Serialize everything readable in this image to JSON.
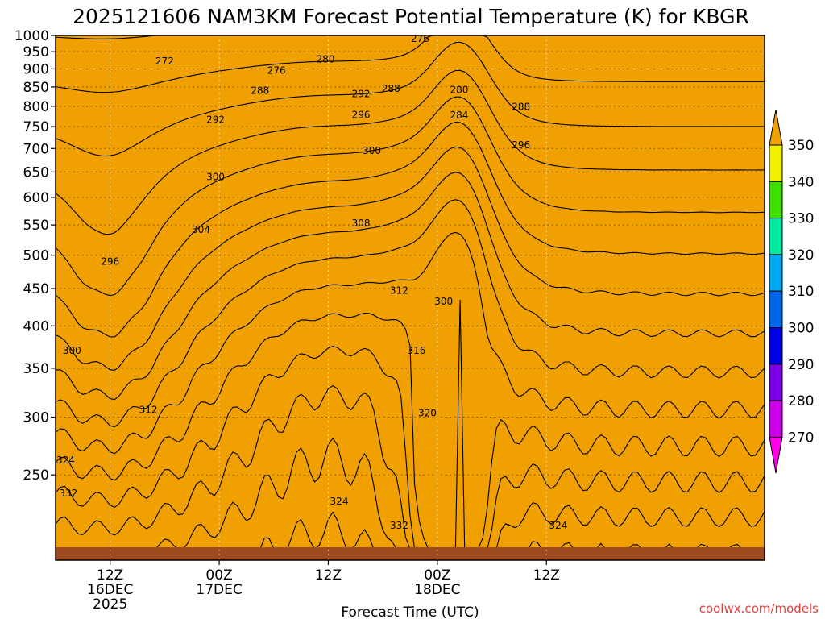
{
  "chart_data": {
    "type": "heatmap",
    "title": "2025121606 NAM3KM Forecast Potential Temperature (K) for KBGR",
    "xlabel": "Forecast Time (UTC)",
    "ylabel": "",
    "credit": "coolwx.com/models",
    "x_hours": [
      0,
      78
    ],
    "x_ticks": [
      {
        "hour": 6,
        "lines": [
          "12Z",
          "16DEC",
          "2025"
        ]
      },
      {
        "hour": 18,
        "lines": [
          "00Z",
          "17DEC"
        ]
      },
      {
        "hour": 30,
        "lines": [
          "12Z"
        ]
      },
      {
        "hour": 42,
        "lines": [
          "00Z",
          "18DEC"
        ]
      },
      {
        "hour": 54,
        "lines": [
          "12Z"
        ]
      }
    ],
    "y_levels": [
      1000,
      950,
      900,
      850,
      800,
      750,
      700,
      650,
      600,
      550,
      500,
      450,
      400,
      350,
      300,
      250
    ],
    "ylim": [
      1000,
      200
    ],
    "y_scale": "log",
    "legend_levels": [
      270,
      280,
      290,
      300,
      310,
      320,
      330,
      340,
      350
    ],
    "legend_placement": "right",
    "band_colors": [
      "#ff00e6",
      "#cc00e6",
      "#7a00e6",
      "#0000e6",
      "#0066e6",
      "#00a8f0",
      "#00eaa0",
      "#40e000",
      "#f0f000",
      "#f0a000"
    ],
    "ground_color": "#a04a20",
    "grid": true,
    "contour_labels": [
      {
        "text": "332",
        "hour": 1.4,
        "hpa": 236
      },
      {
        "text": "324",
        "hour": 1.1,
        "hpa": 262
      },
      {
        "text": "312",
        "hour": 10.2,
        "hpa": 307
      },
      {
        "text": "300",
        "hour": 1.8,
        "hpa": 370
      },
      {
        "text": "296",
        "hour": 6.0,
        "hpa": 490
      },
      {
        "text": "304",
        "hour": 16.0,
        "hpa": 542
      },
      {
        "text": "300",
        "hour": 17.6,
        "hpa": 640
      },
      {
        "text": "292",
        "hour": 17.6,
        "hpa": 767
      },
      {
        "text": "288",
        "hour": 22.5,
        "hpa": 840
      },
      {
        "text": "276",
        "hour": 24.3,
        "hpa": 895
      },
      {
        "text": "272",
        "hour": 12.0,
        "hpa": 922
      },
      {
        "text": "280",
        "hour": 29.7,
        "hpa": 928
      },
      {
        "text": "276",
        "hour": 40.1,
        "hpa": 990
      },
      {
        "text": "324",
        "hour": 31.2,
        "hpa": 230
      },
      {
        "text": "332",
        "hour": 37.8,
        "hpa": 213
      },
      {
        "text": "324",
        "hour": 55.3,
        "hpa": 213
      },
      {
        "text": "320",
        "hour": 40.9,
        "hpa": 304
      },
      {
        "text": "316",
        "hour": 39.7,
        "hpa": 370
      },
      {
        "text": "312",
        "hour": 37.8,
        "hpa": 447
      },
      {
        "text": "308",
        "hour": 33.6,
        "hpa": 553
      },
      {
        "text": "300",
        "hour": 42.7,
        "hpa": 432
      },
      {
        "text": "300",
        "hour": 34.8,
        "hpa": 695
      },
      {
        "text": "296",
        "hour": 33.6,
        "hpa": 778
      },
      {
        "text": "292",
        "hour": 33.6,
        "hpa": 832
      },
      {
        "text": "288",
        "hour": 36.9,
        "hpa": 845
      },
      {
        "text": "284",
        "hour": 44.4,
        "hpa": 777
      },
      {
        "text": "280",
        "hour": 44.4,
        "hpa": 842
      },
      {
        "text": "296",
        "hour": 51.2,
        "hpa": 708
      },
      {
        "text": "288",
        "hour": 51.2,
        "hpa": 799
      }
    ]
  }
}
